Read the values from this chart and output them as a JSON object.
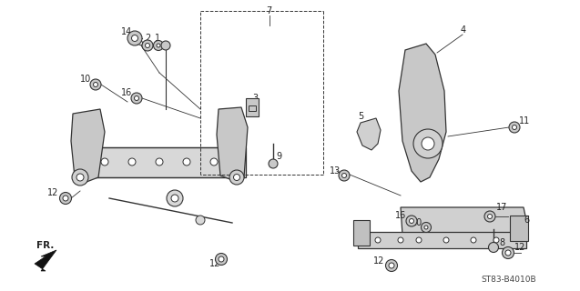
{
  "background_color": "#ffffff",
  "line_color": "#333333",
  "diagram_code": "ST83-B4010B",
  "fr_label": "FR.",
  "fig_width": 6.37,
  "fig_height": 3.2,
  "dpi": 100
}
